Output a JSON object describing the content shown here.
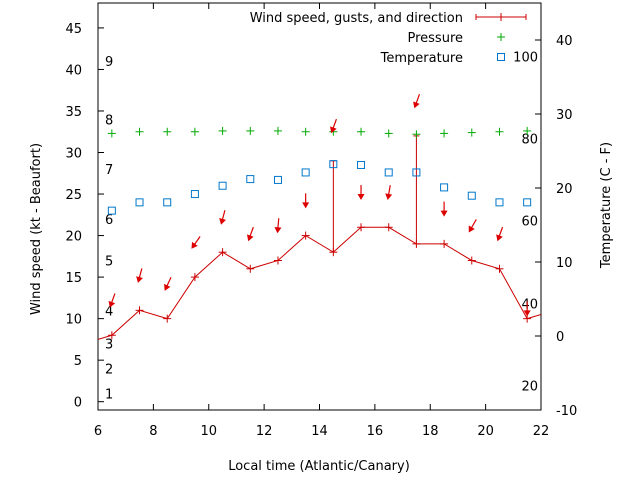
{
  "chart_data": {
    "type": "line",
    "xlabel": "Local time (Atlantic/Canary)",
    "ylabel": "Wind speed (kt - Beaufort)",
    "y2label": "Temperature (C - F)",
    "xlim": [
      6,
      22
    ],
    "ylim": [
      -1,
      48
    ],
    "y2lim": [
      -10,
      45
    ],
    "x_ticks": [
      6,
      8,
      10,
      12,
      14,
      16,
      18,
      20,
      22
    ],
    "y_ticks": [
      0,
      5,
      10,
      15,
      20,
      25,
      30,
      35,
      40,
      45
    ],
    "y2_ticks": [
      -10,
      0,
      10,
      20,
      30,
      40
    ],
    "beaufort_labels": [
      {
        "label": "1",
        "y": 1
      },
      {
        "label": "2",
        "y": 4
      },
      {
        "label": "3",
        "y": 7
      },
      {
        "label": "4",
        "y": 11
      },
      {
        "label": "5",
        "y": 17
      },
      {
        "label": "6",
        "y": 22
      },
      {
        "label": "7",
        "y": 28
      },
      {
        "label": "8",
        "y": 34
      },
      {
        "label": "9",
        "y": 41
      }
    ],
    "fahrenheit_labels": [
      {
        "label": "20",
        "y2": -6.7
      },
      {
        "label": "40",
        "y2": 4.4
      },
      {
        "label": "60",
        "y2": 15.6
      },
      {
        "label": "80",
        "y2": 26.7
      },
      {
        "label": "100",
        "y2": 37.8
      }
    ],
    "legend": {
      "position": "top-right",
      "entries": [
        "Wind speed, gusts, and direction",
        "Pressure",
        "Temperature"
      ]
    },
    "colors": {
      "wind": "#cc0000",
      "arrow": "#dd0000",
      "pressure": "#00aa00",
      "temperature": "#0077cc"
    },
    "series": [
      {
        "name": "Wind speed, gusts, and direction",
        "x": [
          6,
          6.5,
          7.5,
          8.5,
          9.5,
          10.5,
          11.5,
          12.5,
          13.5,
          14.5,
          15.5,
          16.5,
          17.5,
          18.5,
          19.5,
          20.5,
          21.5,
          22
        ],
        "y": [
          7.5,
          8,
          11,
          10,
          15,
          18,
          16,
          17,
          20,
          18,
          21,
          21,
          19,
          19,
          17,
          16,
          10,
          10.5
        ],
        "gusts": [
          {
            "x": 14.5,
            "y": 29
          },
          {
            "x": 17.5,
            "y": 32
          }
        ]
      },
      {
        "name": "Pressure",
        "x": [
          6.5,
          7.5,
          8.5,
          9.5,
          10.5,
          11.5,
          12.5,
          13.5,
          14.5,
          15.5,
          16.5,
          17.5,
          18.5,
          19.5,
          20.5,
          21.5
        ],
        "y": [
          32.3,
          32.5,
          32.5,
          32.5,
          32.6,
          32.6,
          32.6,
          32.5,
          32.5,
          32.5,
          32.3,
          32.2,
          32.3,
          32.4,
          32.5,
          32.6
        ]
      },
      {
        "name": "Temperature",
        "x": [
          6.5,
          7.5,
          8.5,
          9.5,
          10.5,
          11.5,
          12.5,
          13.5,
          14.5,
          15.5,
          16.5,
          17.5,
          18.5,
          19.5,
          20.5,
          21.5
        ],
        "y": [
          23,
          24,
          24,
          25,
          26,
          26.8,
          26.7,
          27.6,
          28.6,
          28.5,
          27.6,
          27.6,
          25.8,
          24.8,
          24,
          24
        ]
      }
    ],
    "wind_arrows": [
      {
        "x": 6.5,
        "y": 12,
        "dir_deg": 20
      },
      {
        "x": 7.5,
        "y": 15,
        "dir_deg": 15
      },
      {
        "x": 8.5,
        "y": 14,
        "dir_deg": 25
      },
      {
        "x": 9.5,
        "y": 19,
        "dir_deg": 35
      },
      {
        "x": 10.5,
        "y": 22,
        "dir_deg": 15
      },
      {
        "x": 11.5,
        "y": 20,
        "dir_deg": 20
      },
      {
        "x": 12.5,
        "y": 21,
        "dir_deg": 5
      },
      {
        "x": 13.5,
        "y": 24,
        "dir_deg": 0
      },
      {
        "x": 14.5,
        "y": 33,
        "dir_deg": 20
      },
      {
        "x": 15.5,
        "y": 25,
        "dir_deg": 0
      },
      {
        "x": 16.5,
        "y": 25,
        "dir_deg": 10
      },
      {
        "x": 17.5,
        "y": 36,
        "dir_deg": 20
      },
      {
        "x": 18.5,
        "y": 23,
        "dir_deg": 0
      },
      {
        "x": 19.5,
        "y": 21,
        "dir_deg": 30
      },
      {
        "x": 20.5,
        "y": 20,
        "dir_deg": 20
      },
      {
        "x": 21.5,
        "y": 11,
        "dir_deg": 0
      }
    ]
  }
}
